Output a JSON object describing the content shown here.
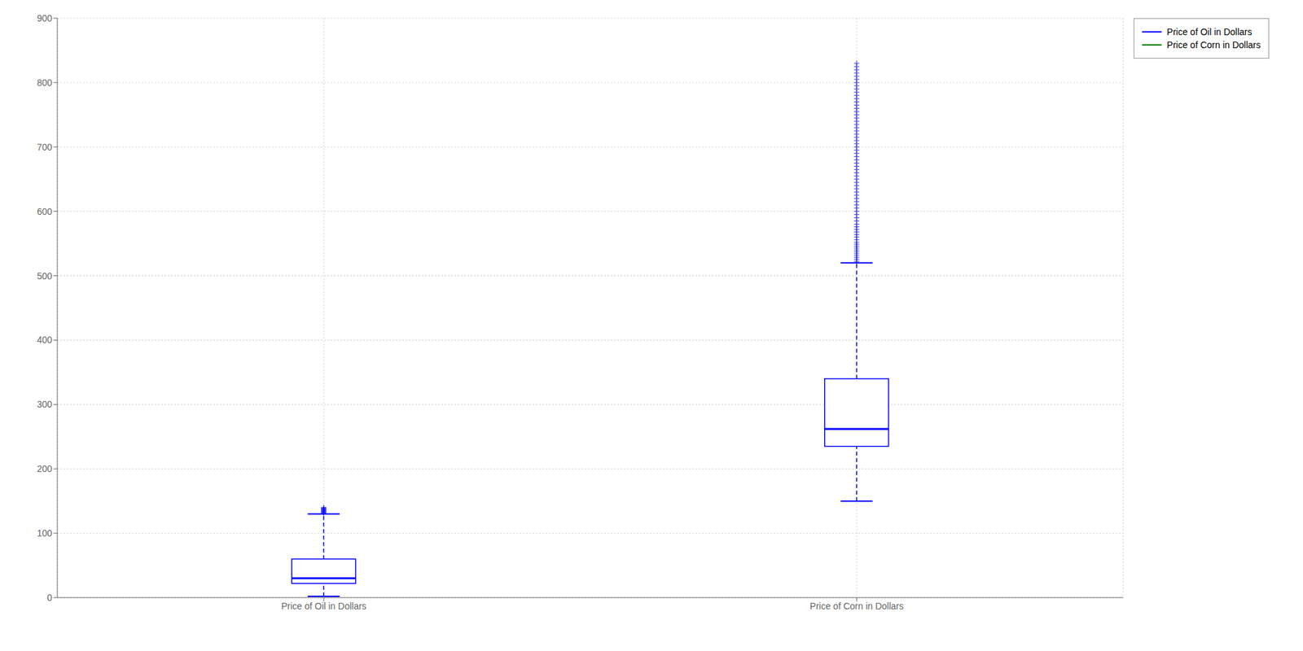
{
  "chart_data": {
    "type": "box",
    "categories": [
      "Price of Oil in Dollars",
      "Price of Corn in Dollars"
    ],
    "boxes": [
      {
        "whislo": 2,
        "q1": 22,
        "med": 30,
        "q3": 60,
        "whishi": 130,
        "fliers": [
          131,
          132,
          133,
          134,
          135,
          136,
          137,
          138,
          139,
          140
        ]
      },
      {
        "whislo": 150,
        "q1": 235,
        "med": 262,
        "q3": 340,
        "whishi": 520,
        "fliers": [
          522,
          525,
          528,
          531,
          534,
          537,
          540,
          543,
          546,
          549,
          552,
          556,
          560,
          564,
          568,
          572,
          576,
          580,
          585,
          590,
          595,
          600,
          605,
          610,
          615,
          620,
          625,
          630,
          635,
          640,
          645,
          650,
          655,
          660,
          665,
          670,
          675,
          680,
          685,
          690,
          695,
          700,
          705,
          710,
          715,
          720,
          725,
          730,
          735,
          740,
          745,
          750,
          755,
          760,
          765,
          770,
          775,
          780,
          785,
          790,
          795,
          800,
          805,
          810,
          815,
          820,
          825,
          830
        ]
      }
    ],
    "series": [
      {
        "name": "Price of Oil in Dollars",
        "color": "#0000ff"
      },
      {
        "name": "Price of Corn in Dollars",
        "color": "#008000"
      }
    ],
    "color": "#0000ff",
    "ylim": [
      0,
      900
    ],
    "yticks": [
      0,
      100,
      200,
      300,
      400,
      500,
      600,
      700,
      800,
      900
    ],
    "grid": true,
    "legend": "upper right"
  }
}
